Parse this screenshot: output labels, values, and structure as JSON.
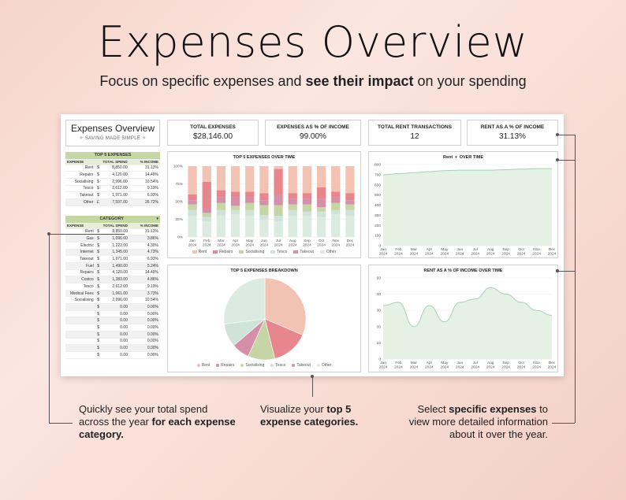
{
  "headline": "Expenses Overview",
  "subline": {
    "pre": "Focus on specific expenses and ",
    "bold": "see their impact",
    "post": " on your spending"
  },
  "sheet": {
    "title": "Expenses Overview",
    "subtitle": "✧ SAVING MADE SIMPLE ✧",
    "top5": {
      "header": "TOP 5 EXPENSES",
      "columns": [
        "EXPENSE",
        "TOTAL SPEND",
        "% INCOME"
      ],
      "rows": [
        {
          "name": "Rent",
          "cur": "$",
          "spend": "8,850.00",
          "pct": "31.13%"
        },
        {
          "name": "Repairs",
          "cur": "$",
          "spend": "4,120.00",
          "pct": "14.49%"
        },
        {
          "name": "Socialising",
          "cur": "$",
          "spend": "2,996.00",
          "pct": "10.54%"
        },
        {
          "name": "Tesco",
          "cur": "$",
          "spend": "2,612.00",
          "pct": "9.19%"
        },
        {
          "name": "Takeout",
          "cur": "$",
          "spend": "1,971.00",
          "pct": "6.93%"
        },
        {
          "name": "Other",
          "cur": "£",
          "spend": "7,597.00",
          "pct": "26.72%"
        }
      ]
    },
    "category": {
      "header": "CATEGORY",
      "columns": [
        "EXPENSE",
        "TOTAL SPEND",
        "% INCOME"
      ],
      "rows": [
        {
          "name": "Rent",
          "cur": "$",
          "spend": "8,850.00",
          "pct": "31.13%"
        },
        {
          "name": "Gas",
          "cur": "$",
          "spend": "1,096.00",
          "pct": "3.86%"
        },
        {
          "name": "Electric",
          "cur": "$",
          "spend": "1,222.00",
          "pct": "4.30%"
        },
        {
          "name": "Internet",
          "cur": "$",
          "spend": "1,345.00",
          "pct": "4.73%"
        },
        {
          "name": "Takeout",
          "cur": "$",
          "spend": "1,971.00",
          "pct": "6.93%"
        },
        {
          "name": "Fuel",
          "cur": "$",
          "spend": "1,490.00",
          "pct": "5.24%"
        },
        {
          "name": "Repairs",
          "cur": "$",
          "spend": "4,120.00",
          "pct": "14.49%"
        },
        {
          "name": "Costco",
          "cur": "$",
          "spend": "1,383.00",
          "pct": "4.86%"
        },
        {
          "name": "Tesco",
          "cur": "$",
          "spend": "2,612.00",
          "pct": "9.19%"
        },
        {
          "name": "Medical Fees",
          "cur": "$",
          "spend": "1,061.00",
          "pct": "3.73%"
        },
        {
          "name": "Socialising",
          "cur": "$",
          "spend": "2,996.00",
          "pct": "10.54%"
        },
        {
          "name": "",
          "cur": "$",
          "spend": "0.00",
          "pct": "0.00%"
        },
        {
          "name": "",
          "cur": "$",
          "spend": "0.00",
          "pct": "0.00%"
        },
        {
          "name": "",
          "cur": "$",
          "spend": "0.00",
          "pct": "0.00%"
        },
        {
          "name": "",
          "cur": "$",
          "spend": "0.00",
          "pct": "0.00%"
        },
        {
          "name": "",
          "cur": "$",
          "spend": "0.00",
          "pct": "0.00%"
        },
        {
          "name": "",
          "cur": "$",
          "spend": "0.00",
          "pct": "0.00%"
        },
        {
          "name": "",
          "cur": "$",
          "spend": "0.00",
          "pct": "0.00%"
        },
        {
          "name": "",
          "cur": "$",
          "spend": "0.00",
          "pct": "0.00%"
        },
        {
          "name": "",
          "cur": "$",
          "spend": "0.00",
          "pct": "0.00%"
        }
      ]
    },
    "kpis": [
      {
        "label": "TOTAL EXPENSES",
        "value": "$28,146.00"
      },
      {
        "label": "EXPENSES AS % OF INCOME",
        "value": "99.00%"
      },
      {
        "label": "TOTAL RENT TRANSACTIONS",
        "value": "12"
      },
      {
        "label": "RENT AS A % OF INCOME",
        "value": "31.13%"
      }
    ],
    "rent_selector": "Rent",
    "rent_title_suffix": "OVER TIME",
    "dropdown_icon": "chevron-down-icon"
  },
  "colors": {
    "Rent": "#f2c2b3",
    "Repairs": "#e8868d",
    "Socialising": "#c7d5a6",
    "Tesco": "#cfe3d8",
    "Takeout": "#d58fa8",
    "Other": "#dcebe2",
    "area_fill": "#e5f1e4",
    "area_line": "#a7cfb5"
  },
  "chart_data": [
    {
      "type": "bar",
      "stacked": "percent",
      "title": "TOP 5 EXPENSES OVER TIME",
      "categories": [
        "Jan\n2024",
        "Feb\n2024",
        "Mar\n2024",
        "Apr\n2024",
        "May\n2024",
        "Jun\n2024",
        "Jul\n2024",
        "Aug\n2024",
        "Sep\n2024",
        "Oct\n2024",
        "Nov\n2024",
        "Dec\n2024"
      ],
      "ylim": [
        0,
        100
      ],
      "yticks": [
        "0%",
        "25%",
        "50%",
        "75%",
        "100%"
      ],
      "legend": "bottom",
      "series": [
        {
          "name": "Other",
          "values": [
            30,
            22,
            30,
            32,
            30,
            25,
            22,
            30,
            30,
            28,
            32,
            30
          ]
        },
        {
          "name": "Tesco",
          "values": [
            8,
            6,
            8,
            6,
            8,
            6,
            8,
            8,
            6,
            8,
            6,
            8
          ]
        },
        {
          "name": "Socialising",
          "values": [
            8,
            6,
            10,
            6,
            10,
            14,
            15,
            8,
            10,
            6,
            10,
            8
          ]
        },
        {
          "name": "Takeout",
          "values": [
            6,
            6,
            8,
            12,
            8,
            7,
            15,
            8,
            8,
            12,
            8,
            6
          ]
        },
        {
          "name": "Repairs",
          "values": [
            8,
            38,
            10,
            8,
            8,
            10,
            36,
            8,
            8,
            16,
            8,
            10
          ]
        },
        {
          "name": "Rent",
          "values": [
            40,
            22,
            34,
            36,
            36,
            38,
            4,
            38,
            38,
            30,
            36,
            38
          ]
        }
      ]
    },
    {
      "type": "pie",
      "title": "TOP 5 EXPENSES BREAKDOWN",
      "legend": "bottom",
      "labels": [
        "Rent",
        "Repairs",
        "Socialising",
        "Tesco",
        "Takeout",
        "Other"
      ],
      "values": [
        8850,
        4120,
        2996,
        2612,
        1971,
        7597
      ]
    },
    {
      "type": "area",
      "x": [
        "Jan\n2024",
        "Feb\n2024",
        "Mar\n2024",
        "Apr\n2024",
        "May\n2024",
        "Jun\n2024",
        "Jul\n2024",
        "Aug\n2024",
        "Sep\n2024",
        "Oct\n2024",
        "Nov\n2024",
        "Dec\n2024"
      ],
      "y": [
        700,
        710,
        720,
        730,
        740,
        745,
        745,
        745,
        750,
        755,
        760,
        760
      ],
      "ylim": [
        0,
        800
      ],
      "yticks": [
        "0",
        "100",
        "200",
        "300",
        "400",
        "500",
        "600",
        "700",
        "800"
      ],
      "grid": true
    },
    {
      "type": "area",
      "title": "RENT AS A % OF INCOME OVER TIME",
      "x": [
        "Jan\n2024",
        "Feb\n2024",
        "Mar\n2024",
        "Apr\n2024",
        "May\n2024",
        "Jun\n2024",
        "Jul\n2024",
        "Aug\n2024",
        "Sep\n2024",
        "Oct\n2024",
        "Nov\n2024",
        "Dec\n2024"
      ],
      "y": [
        33,
        35,
        20,
        33,
        23,
        35,
        37,
        44,
        40,
        35,
        30,
        27
      ],
      "ylim": [
        0,
        50
      ],
      "yticks": [
        "0",
        "10",
        "20",
        "30",
        "40",
        "50"
      ],
      "grid": true
    }
  ],
  "callouts": {
    "left": {
      "pre": "Quickly see your total spend across the year ",
      "bold": "for each expense category."
    },
    "middle": {
      "pre": "Visualize your ",
      "bold": "top 5 expense categories."
    },
    "right": {
      "pre": "Select ",
      "bold": "specific expenses",
      "post": " to view more detailed information about it over the year."
    }
  }
}
